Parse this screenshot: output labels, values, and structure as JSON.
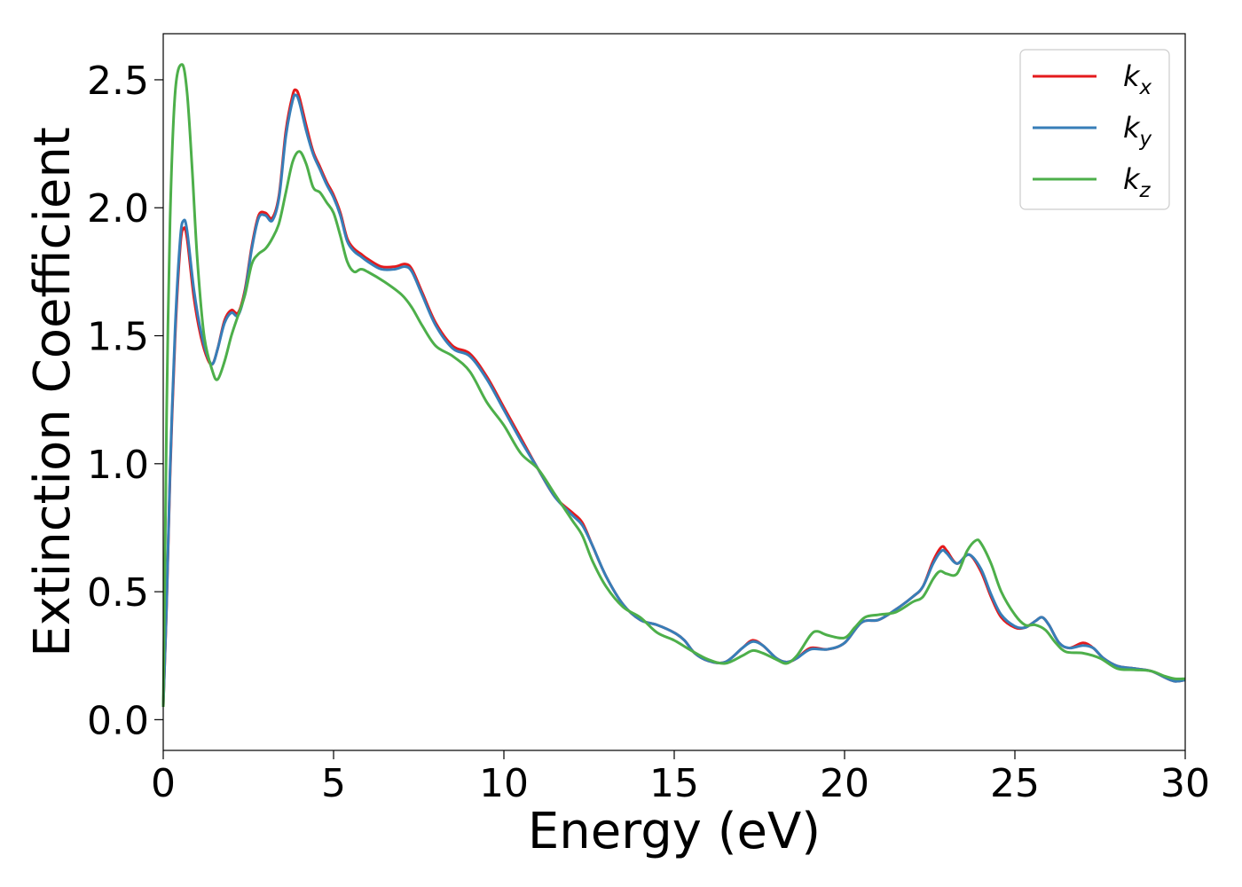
{
  "chart_data": {
    "type": "line",
    "xlabel": "Energy (eV)",
    "ylabel": "Extinction Coefficient",
    "xlim": [
      0,
      30
    ],
    "ylim": [
      -0.12,
      2.68
    ],
    "xticks": [
      0,
      5,
      10,
      15,
      20,
      25,
      30
    ],
    "yticks": [
      0.0,
      0.5,
      1.0,
      1.5,
      2.0,
      2.5
    ],
    "xtick_labels": [
      "0",
      "5",
      "10",
      "15",
      "20",
      "25",
      "30"
    ],
    "ytick_labels": [
      "0.0",
      "0.5",
      "1.0",
      "1.5",
      "2.0",
      "2.5"
    ],
    "grid": false,
    "legend_position": "top-right",
    "series": [
      {
        "name": "k",
        "subscript": "x",
        "color": "#e41a1c",
        "points": [
          [
            0,
            0.05
          ],
          [
            0.1,
            0.45
          ],
          [
            0.2,
            0.95
          ],
          [
            0.35,
            1.5
          ],
          [
            0.5,
            1.85
          ],
          [
            0.6,
            1.92
          ],
          [
            0.7,
            1.88
          ],
          [
            0.9,
            1.65
          ],
          [
            1.1,
            1.5
          ],
          [
            1.3,
            1.41
          ],
          [
            1.45,
            1.39
          ],
          [
            1.6,
            1.45
          ],
          [
            1.8,
            1.56
          ],
          [
            2.0,
            1.6
          ],
          [
            2.2,
            1.59
          ],
          [
            2.4,
            1.68
          ],
          [
            2.6,
            1.85
          ],
          [
            2.8,
            1.97
          ],
          [
            3.0,
            1.98
          ],
          [
            3.2,
            1.96
          ],
          [
            3.4,
            2.05
          ],
          [
            3.6,
            2.3
          ],
          [
            3.8,
            2.44
          ],
          [
            3.9,
            2.46
          ],
          [
            4.0,
            2.43
          ],
          [
            4.2,
            2.32
          ],
          [
            4.4,
            2.22
          ],
          [
            4.6,
            2.16
          ],
          [
            4.8,
            2.1
          ],
          [
            5.0,
            2.05
          ],
          [
            5.2,
            1.98
          ],
          [
            5.4,
            1.88
          ],
          [
            5.6,
            1.84
          ],
          [
            5.8,
            1.82
          ],
          [
            6.0,
            1.8
          ],
          [
            6.4,
            1.77
          ],
          [
            6.8,
            1.77
          ],
          [
            7.1,
            1.78
          ],
          [
            7.3,
            1.76
          ],
          [
            7.6,
            1.67
          ],
          [
            8.0,
            1.55
          ],
          [
            8.5,
            1.46
          ],
          [
            9.0,
            1.43
          ],
          [
            9.5,
            1.34
          ],
          [
            10.0,
            1.22
          ],
          [
            10.5,
            1.1
          ],
          [
            11.0,
            0.98
          ],
          [
            11.5,
            0.87
          ],
          [
            12.0,
            0.81
          ],
          [
            12.3,
            0.77
          ],
          [
            12.6,
            0.68
          ],
          [
            13.0,
            0.56
          ],
          [
            13.5,
            0.45
          ],
          [
            14.0,
            0.39
          ],
          [
            14.5,
            0.37
          ],
          [
            15.0,
            0.34
          ],
          [
            15.3,
            0.31
          ],
          [
            15.6,
            0.26
          ],
          [
            16.0,
            0.23
          ],
          [
            16.5,
            0.225
          ],
          [
            17.0,
            0.28
          ],
          [
            17.3,
            0.31
          ],
          [
            17.6,
            0.29
          ],
          [
            18.0,
            0.24
          ],
          [
            18.3,
            0.225
          ],
          [
            18.6,
            0.24
          ],
          [
            19.0,
            0.28
          ],
          [
            19.5,
            0.275
          ],
          [
            20.0,
            0.3
          ],
          [
            20.5,
            0.38
          ],
          [
            21.0,
            0.39
          ],
          [
            21.5,
            0.43
          ],
          [
            22.0,
            0.48
          ],
          [
            22.3,
            0.52
          ],
          [
            22.6,
            0.62
          ],
          [
            22.85,
            0.675
          ],
          [
            23.0,
            0.66
          ],
          [
            23.3,
            0.61
          ],
          [
            23.65,
            0.645
          ],
          [
            24.0,
            0.58
          ],
          [
            24.3,
            0.48
          ],
          [
            24.6,
            0.4
          ],
          [
            25.0,
            0.36
          ],
          [
            25.3,
            0.36
          ],
          [
            25.6,
            0.385
          ],
          [
            25.8,
            0.4
          ],
          [
            26.0,
            0.37
          ],
          [
            26.3,
            0.3
          ],
          [
            26.6,
            0.28
          ],
          [
            27.0,
            0.3
          ],
          [
            27.3,
            0.28
          ],
          [
            27.6,
            0.24
          ],
          [
            28.0,
            0.21
          ],
          [
            28.5,
            0.2
          ],
          [
            29.0,
            0.19
          ],
          [
            29.4,
            0.165
          ],
          [
            29.7,
            0.15
          ],
          [
            30.0,
            0.155
          ]
        ]
      },
      {
        "name": "k",
        "subscript": "y",
        "color": "#377eb8",
        "points": [
          [
            0,
            0.05
          ],
          [
            0.1,
            0.46
          ],
          [
            0.2,
            0.97
          ],
          [
            0.35,
            1.53
          ],
          [
            0.5,
            1.88
          ],
          [
            0.6,
            1.95
          ],
          [
            0.7,
            1.91
          ],
          [
            0.9,
            1.68
          ],
          [
            1.1,
            1.52
          ],
          [
            1.3,
            1.42
          ],
          [
            1.45,
            1.39
          ],
          [
            1.6,
            1.45
          ],
          [
            1.8,
            1.55
          ],
          [
            2.0,
            1.59
          ],
          [
            2.2,
            1.58
          ],
          [
            2.4,
            1.67
          ],
          [
            2.6,
            1.84
          ],
          [
            2.8,
            1.96
          ],
          [
            3.0,
            1.97
          ],
          [
            3.2,
            1.95
          ],
          [
            3.4,
            2.04
          ],
          [
            3.6,
            2.28
          ],
          [
            3.8,
            2.42
          ],
          [
            3.9,
            2.44
          ],
          [
            4.0,
            2.41
          ],
          [
            4.2,
            2.3
          ],
          [
            4.4,
            2.21
          ],
          [
            4.6,
            2.15
          ],
          [
            4.8,
            2.09
          ],
          [
            5.0,
            2.04
          ],
          [
            5.2,
            1.97
          ],
          [
            5.4,
            1.87
          ],
          [
            5.6,
            1.83
          ],
          [
            5.8,
            1.81
          ],
          [
            6.0,
            1.79
          ],
          [
            6.4,
            1.76
          ],
          [
            6.8,
            1.76
          ],
          [
            7.1,
            1.77
          ],
          [
            7.3,
            1.75
          ],
          [
            7.6,
            1.66
          ],
          [
            8.0,
            1.54
          ],
          [
            8.5,
            1.45
          ],
          [
            9.0,
            1.42
          ],
          [
            9.5,
            1.33
          ],
          [
            10.0,
            1.21
          ],
          [
            10.5,
            1.09
          ],
          [
            11.0,
            0.98
          ],
          [
            11.5,
            0.87
          ],
          [
            12.0,
            0.8
          ],
          [
            12.3,
            0.76
          ],
          [
            12.6,
            0.68
          ],
          [
            13.0,
            0.56
          ],
          [
            13.5,
            0.45
          ],
          [
            14.0,
            0.39
          ],
          [
            14.5,
            0.37
          ],
          [
            15.0,
            0.34
          ],
          [
            15.3,
            0.31
          ],
          [
            15.6,
            0.26
          ],
          [
            16.0,
            0.23
          ],
          [
            16.5,
            0.225
          ],
          [
            17.0,
            0.28
          ],
          [
            17.3,
            0.305
          ],
          [
            17.6,
            0.29
          ],
          [
            18.0,
            0.24
          ],
          [
            18.3,
            0.225
          ],
          [
            18.6,
            0.24
          ],
          [
            19.0,
            0.275
          ],
          [
            19.5,
            0.275
          ],
          [
            20.0,
            0.3
          ],
          [
            20.5,
            0.38
          ],
          [
            21.0,
            0.39
          ],
          [
            21.5,
            0.43
          ],
          [
            22.0,
            0.48
          ],
          [
            22.3,
            0.52
          ],
          [
            22.6,
            0.61
          ],
          [
            22.85,
            0.66
          ],
          [
            23.0,
            0.65
          ],
          [
            23.3,
            0.61
          ],
          [
            23.65,
            0.645
          ],
          [
            24.0,
            0.59
          ],
          [
            24.3,
            0.49
          ],
          [
            24.6,
            0.41
          ],
          [
            25.0,
            0.365
          ],
          [
            25.3,
            0.36
          ],
          [
            25.6,
            0.385
          ],
          [
            25.8,
            0.4
          ],
          [
            26.0,
            0.37
          ],
          [
            26.3,
            0.3
          ],
          [
            26.6,
            0.28
          ],
          [
            27.0,
            0.29
          ],
          [
            27.3,
            0.28
          ],
          [
            27.6,
            0.24
          ],
          [
            28.0,
            0.21
          ],
          [
            28.5,
            0.2
          ],
          [
            29.0,
            0.19
          ],
          [
            29.4,
            0.165
          ],
          [
            29.7,
            0.15
          ],
          [
            30.0,
            0.155
          ]
        ]
      },
      {
        "name": "k",
        "subscript": "z",
        "color": "#4daf4a",
        "points": [
          [
            0,
            0.05
          ],
          [
            0.05,
            0.6
          ],
          [
            0.1,
            1.2
          ],
          [
            0.2,
            1.95
          ],
          [
            0.35,
            2.45
          ],
          [
            0.55,
            2.56
          ],
          [
            0.7,
            2.45
          ],
          [
            0.85,
            2.15
          ],
          [
            1.0,
            1.8
          ],
          [
            1.2,
            1.5
          ],
          [
            1.45,
            1.36
          ],
          [
            1.6,
            1.33
          ],
          [
            1.8,
            1.4
          ],
          [
            2.0,
            1.5
          ],
          [
            2.2,
            1.58
          ],
          [
            2.4,
            1.66
          ],
          [
            2.6,
            1.78
          ],
          [
            2.8,
            1.82
          ],
          [
            3.0,
            1.84
          ],
          [
            3.2,
            1.88
          ],
          [
            3.4,
            1.94
          ],
          [
            3.6,
            2.06
          ],
          [
            3.8,
            2.18
          ],
          [
            4.0,
            2.22
          ],
          [
            4.2,
            2.17
          ],
          [
            4.4,
            2.08
          ],
          [
            4.6,
            2.06
          ],
          [
            4.8,
            2.02
          ],
          [
            5.0,
            1.98
          ],
          [
            5.2,
            1.89
          ],
          [
            5.4,
            1.79
          ],
          [
            5.6,
            1.75
          ],
          [
            5.8,
            1.76
          ],
          [
            6.0,
            1.75
          ],
          [
            6.5,
            1.71
          ],
          [
            7.0,
            1.66
          ],
          [
            7.3,
            1.61
          ],
          [
            7.6,
            1.54
          ],
          [
            8.0,
            1.46
          ],
          [
            8.5,
            1.42
          ],
          [
            9.0,
            1.36
          ],
          [
            9.5,
            1.24
          ],
          [
            10.0,
            1.15
          ],
          [
            10.5,
            1.04
          ],
          [
            11.0,
            0.98
          ],
          [
            11.5,
            0.88
          ],
          [
            12.0,
            0.78
          ],
          [
            12.3,
            0.72
          ],
          [
            12.6,
            0.62
          ],
          [
            13.0,
            0.52
          ],
          [
            13.5,
            0.44
          ],
          [
            14.0,
            0.4
          ],
          [
            14.5,
            0.34
          ],
          [
            15.0,
            0.31
          ],
          [
            15.5,
            0.27
          ],
          [
            16.0,
            0.235
          ],
          [
            16.5,
            0.22
          ],
          [
            17.0,
            0.25
          ],
          [
            17.3,
            0.27
          ],
          [
            17.6,
            0.26
          ],
          [
            18.0,
            0.235
          ],
          [
            18.3,
            0.22
          ],
          [
            18.6,
            0.25
          ],
          [
            19.0,
            0.33
          ],
          [
            19.2,
            0.345
          ],
          [
            19.5,
            0.33
          ],
          [
            20.0,
            0.32
          ],
          [
            20.3,
            0.36
          ],
          [
            20.6,
            0.4
          ],
          [
            21.0,
            0.41
          ],
          [
            21.5,
            0.42
          ],
          [
            22.0,
            0.46
          ],
          [
            22.3,
            0.48
          ],
          [
            22.6,
            0.55
          ],
          [
            22.8,
            0.58
          ],
          [
            23.0,
            0.57
          ],
          [
            23.3,
            0.57
          ],
          [
            23.6,
            0.66
          ],
          [
            23.85,
            0.7
          ],
          [
            24.0,
            0.69
          ],
          [
            24.3,
            0.61
          ],
          [
            24.6,
            0.5
          ],
          [
            25.0,
            0.41
          ],
          [
            25.3,
            0.37
          ],
          [
            25.6,
            0.37
          ],
          [
            25.9,
            0.35
          ],
          [
            26.2,
            0.3
          ],
          [
            26.5,
            0.265
          ],
          [
            27.0,
            0.26
          ],
          [
            27.5,
            0.24
          ],
          [
            28.0,
            0.2
          ],
          [
            28.5,
            0.195
          ],
          [
            29.0,
            0.19
          ],
          [
            29.4,
            0.17
          ],
          [
            29.7,
            0.16
          ],
          [
            30.0,
            0.16
          ]
        ]
      }
    ]
  }
}
